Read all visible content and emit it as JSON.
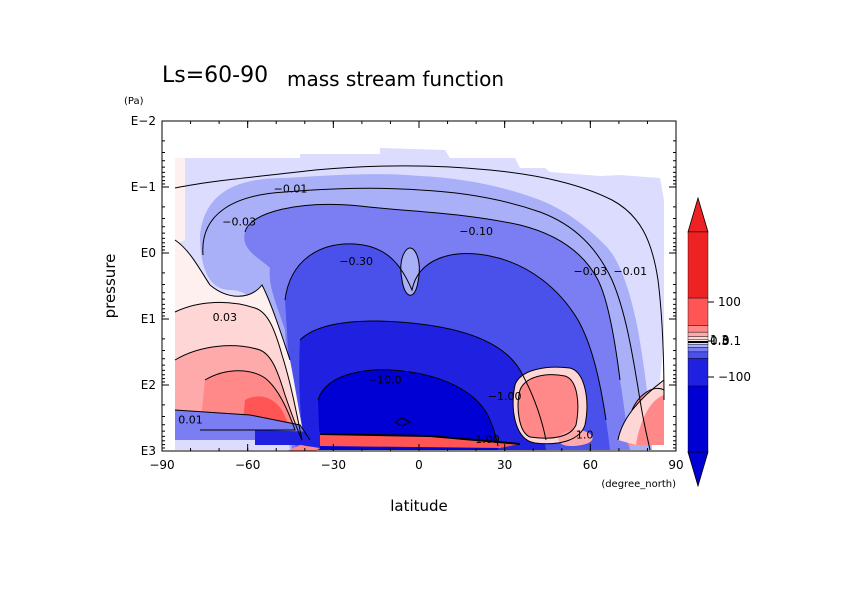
{
  "chart_data": {
    "type": "heatmap",
    "title": "Ls=60-90",
    "subtitle": "mass stream function",
    "xlabel": "latitude",
    "xunit": "(degree_north)",
    "ylabel": "pressure",
    "yunit": "(Pa)",
    "x_ticks": [
      "−90",
      "−60",
      "−30",
      "0",
      "30",
      "60",
      "90"
    ],
    "x_values": [
      -90,
      -60,
      -30,
      0,
      30,
      60,
      90
    ],
    "xlim": [
      -90,
      90
    ],
    "y_ticks": [
      "E−2",
      "E−1",
      "E0",
      "E1",
      "E2",
      "E3"
    ],
    "y_values": [
      -2,
      -1,
      0,
      1,
      2,
      3
    ],
    "ylim_log10": [
      -2,
      3
    ],
    "contour_labels": [
      {
        "text": "−0.01",
        "lat": -45,
        "logp": -0.95
      },
      {
        "text": "−0.03",
        "lat": -63,
        "logp": -0.45
      },
      {
        "text": "−0.10",
        "lat": 20,
        "logp": -0.3
      },
      {
        "text": "−0.30",
        "lat": -22,
        "logp": 0.15
      },
      {
        "text": "−0.03",
        "lat": 60,
        "logp": 0.3
      },
      {
        "text": "−0.01",
        "lat": 74,
        "logp": 0.3
      },
      {
        "text": "0.03",
        "lat": -68,
        "logp": 1.0
      },
      {
        "text": "−10.0",
        "lat": -12,
        "logp": 1.95
      },
      {
        "text": "−1.00",
        "lat": 30,
        "logp": 2.2
      },
      {
        "text": "1.00",
        "lat": 24,
        "logp": 2.85
      },
      {
        "text": "0.01",
        "lat": -80,
        "logp": 2.55
      },
      {
        "text": "1.0",
        "lat": 58,
        "logp": 2.78
      }
    ],
    "colorbar": {
      "ticks": [
        "100",
        "0.1",
        "−100"
      ],
      "overlap_labels": [
        "0.3",
        "1.3"
      ],
      "positive_colors": [
        "#fff0f0",
        "#ffd6d6",
        "#ffaaaa",
        "#ff8888",
        "#ff5555",
        "#ee2222"
      ],
      "negative_colors": [
        "#dcdcff",
        "#aab0f8",
        "#7a7ef2",
        "#4a50ea",
        "#2020e0",
        "#0000d4"
      ]
    }
  }
}
